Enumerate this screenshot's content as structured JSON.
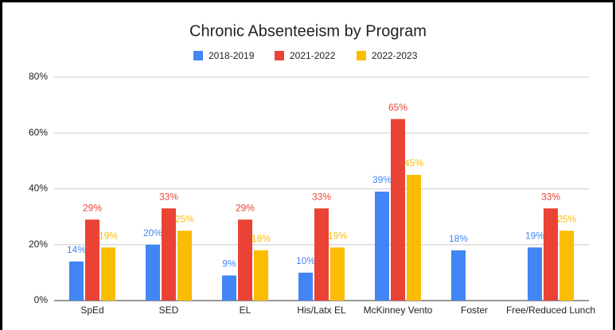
{
  "chart_data": {
    "type": "bar",
    "title": "Chronic Absenteeism by Program",
    "categories": [
      "SpEd",
      "SED",
      "EL",
      "His/Latx EL",
      "McKinney Vento",
      "Foster",
      "Free/Reduced Lunch"
    ],
    "series": [
      {
        "name": "2018-2019",
        "color": "#4285f4",
        "values": [
          14,
          20,
          9,
          10,
          39,
          18,
          19
        ],
        "value_labels": [
          "14%",
          "20%",
          "9%",
          "10%",
          "39%",
          "18%",
          "19%"
        ]
      },
      {
        "name": "2021-2022",
        "color": "#ea4335",
        "values": [
          29,
          33,
          29,
          33,
          65,
          null,
          33
        ],
        "value_labels": [
          "29%",
          "33%",
          "29%",
          "33%",
          "65%",
          null,
          "33%"
        ]
      },
      {
        "name": "2022-2023",
        "color": "#fbbc04",
        "values": [
          19,
          25,
          18,
          19,
          45,
          null,
          25
        ],
        "value_labels": [
          "19%",
          "25%",
          "18%",
          "19%",
          "45%",
          null,
          "25%"
        ]
      }
    ],
    "ylim": [
      0,
      80
    ],
    "yticks": [
      {
        "value": 0,
        "label": "0%"
      },
      {
        "value": 20,
        "label": "20%"
      },
      {
        "value": 40,
        "label": "40%"
      },
      {
        "value": 60,
        "label": "60%"
      },
      {
        "value": 80,
        "label": "80%"
      }
    ],
    "grid": true,
    "legend": "top"
  }
}
